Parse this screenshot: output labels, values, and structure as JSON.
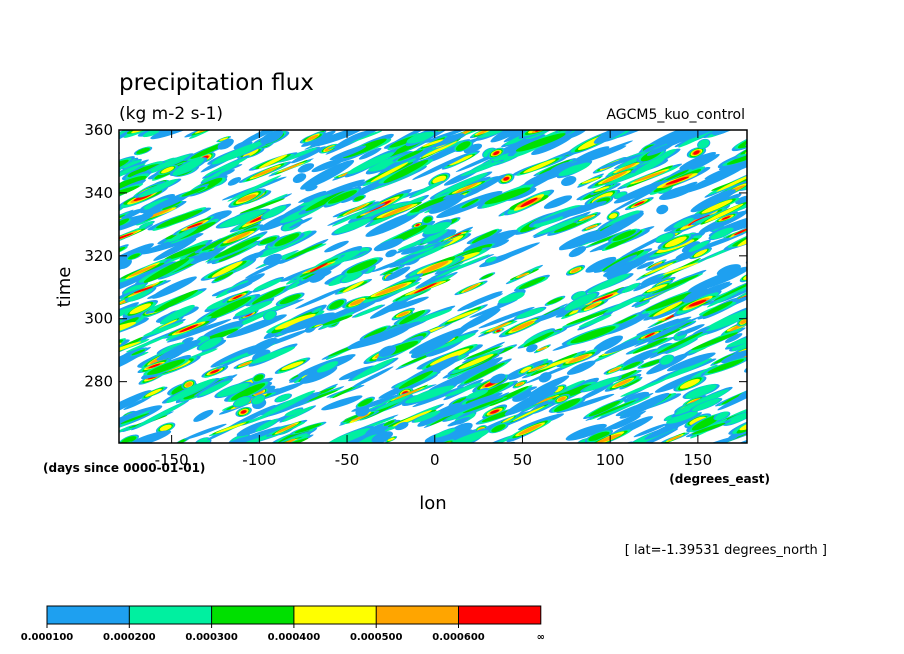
{
  "chart_data": {
    "type": "contour",
    "title": "precipitation flux",
    "subtitle": "(kg m-2 s-1)",
    "dataset": "AGCM5_kuo_control",
    "x_label": "lon",
    "x_units": "(degrees_east)",
    "y_label": "time",
    "y_units": "(days since 0000-01-01)",
    "annotation": "[ lat=-1.39531 degrees_north ]",
    "xlim": [
      -180,
      178
    ],
    "xticks": [
      -150,
      -100,
      -50,
      0,
      50,
      100,
      150
    ],
    "ylim": [
      260.5,
      360
    ],
    "yticks": [
      280,
      300,
      320,
      340,
      360
    ],
    "colorbar": {
      "levels": [
        {
          "value": 0.0001,
          "label": "0.000100"
        },
        {
          "value": 0.0002,
          "label": "0.000200"
        },
        {
          "value": 0.0003,
          "label": "0.000300"
        },
        {
          "value": 0.0004,
          "label": "0.000400"
        },
        {
          "value": 0.0005,
          "label": "0.000500"
        },
        {
          "value": 0.0006,
          "label": "0.000600"
        }
      ],
      "top_label": "∞",
      "colors": [
        "#1ea0f0",
        "#00f0a0",
        "#00e000",
        "#ffff00",
        "#ffa500",
        "#ff0000"
      ]
    }
  }
}
